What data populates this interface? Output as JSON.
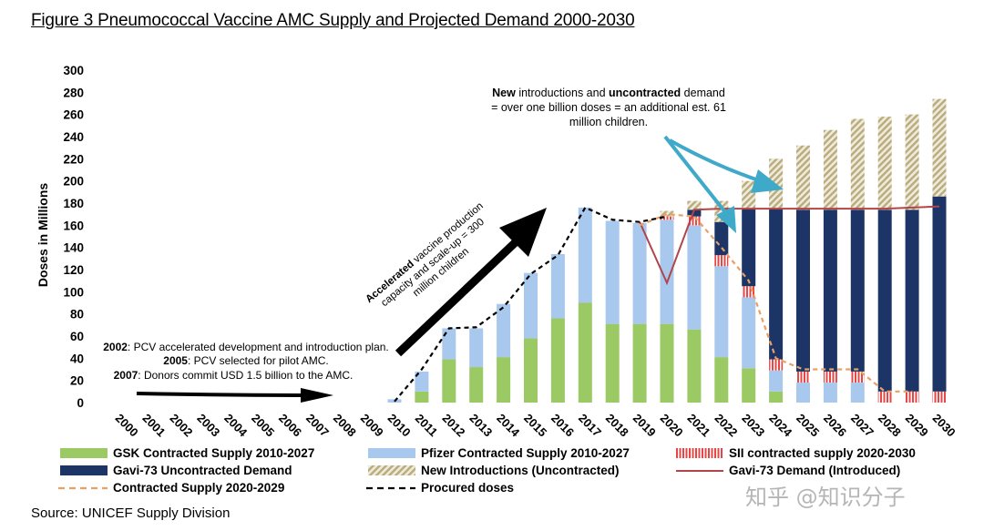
{
  "figure": {
    "title": "Figure 3 Pneumococcal Vaccine AMC Supply and Projected Demand 2000-2030",
    "source": "Source: UNICEF Supply Division",
    "watermark": "知乎 @知识分子"
  },
  "annotations": {
    "new_intro_line1_bold1": "New",
    "new_intro_line1_mid": " introductions and ",
    "new_intro_line1_bold2": "uncontracted",
    "new_intro_line1_end": " demand",
    "new_intro_line2": "= over one billion doses = an additional est. 61",
    "new_intro_line3": "million children.",
    "accel_line1_bold": "Accelerated",
    "accel_line1_rest": " vaccine production",
    "accel_line2": "capacity and scale-up = 300",
    "accel_line3": "million children",
    "hist_2002_bold": "2002",
    "hist_2002_text": ": PCV accelerated development and introduction plan.",
    "hist_2005_bold": "2005",
    "hist_2005_text": ": PCV selected for pilot AMC.",
    "hist_2007_bold": "2007",
    "hist_2007_text": ": Donors commit USD 1.5 billion to the AMC."
  },
  "colors": {
    "gsk": "#9bc964",
    "pfizer": "#a8c8ee",
    "sii": "#e84545",
    "gavi_uncontracted": "#1c3566",
    "new_intro": "#b8ac7c",
    "gavi_demand_line": "#b0454a",
    "contracted_line": "#e8a064",
    "procured_line": "#000000"
  },
  "chart_data": {
    "type": "bar",
    "stacked": true,
    "title": "Figure 3 Pneumococcal Vaccine AMC Supply and Projected Demand 2000-2030",
    "ylabel": "Doses in Millions",
    "xlabel": "",
    "ylim": [
      0,
      300
    ],
    "yticks": [
      0,
      20,
      40,
      60,
      80,
      100,
      120,
      140,
      160,
      180,
      200,
      220,
      240,
      260,
      280,
      300
    ],
    "grid": false,
    "legend_position": "bottom",
    "categories": [
      "2000",
      "2001",
      "2002",
      "2003",
      "2004",
      "2005",
      "2006",
      "2007",
      "2008",
      "2009",
      "2010",
      "2011",
      "2012",
      "2013",
      "2014",
      "2015",
      "2016",
      "2017",
      "2018",
      "2019",
      "2020",
      "2021",
      "2022",
      "2023",
      "2024",
      "2025",
      "2026",
      "2027",
      "2028",
      "2029",
      "2030"
    ],
    "series": [
      {
        "name": "GSK Contracted Supply 2010-2027",
        "kind": "bar",
        "color": "#9bc964",
        "values": [
          0,
          0,
          0,
          0,
          0,
          0,
          0,
          0,
          0,
          0,
          0,
          10,
          39,
          32,
          41,
          58,
          76,
          90,
          71,
          71,
          71,
          66,
          41,
          31,
          10,
          0,
          0,
          0,
          0,
          0,
          0
        ]
      },
      {
        "name": "Pfizer Contracted Supply 2010-2027",
        "kind": "bar",
        "color": "#a8c8ee",
        "values": [
          0,
          0,
          0,
          0,
          0,
          0,
          0,
          0,
          0,
          0,
          3,
          18,
          28,
          35,
          48,
          59,
          58,
          86,
          93,
          91,
          94,
          94,
          82,
          64,
          19,
          18,
          18,
          18,
          0,
          0,
          0
        ]
      },
      {
        "name": "SII contracted supply 2020-2030",
        "kind": "bar",
        "color": "#e84545",
        "values": [
          0,
          0,
          0,
          0,
          0,
          0,
          0,
          0,
          0,
          0,
          0,
          0,
          0,
          0,
          0,
          0,
          0,
          0,
          0,
          0,
          3,
          8,
          10,
          10,
          10,
          10,
          10,
          10,
          10,
          10,
          10
        ]
      },
      {
        "name": "Gavi-73 Uncontracted Demand",
        "kind": "bar",
        "color": "#1c3566",
        "values": [
          0,
          0,
          0,
          0,
          0,
          0,
          0,
          0,
          0,
          0,
          0,
          0,
          0,
          0,
          0,
          0,
          0,
          0,
          0,
          0,
          0,
          6,
          30,
          70,
          136,
          146,
          146,
          146,
          164,
          164,
          176
        ]
      },
      {
        "name": "New Introductions (Uncontracted)",
        "kind": "bar",
        "color": "#b8ac7c",
        "values": [
          0,
          0,
          0,
          0,
          0,
          0,
          0,
          0,
          0,
          0,
          0,
          0,
          0,
          0,
          0,
          0,
          0,
          0,
          0,
          0,
          5,
          8,
          19,
          25,
          45,
          58,
          72,
          82,
          84,
          86,
          88
        ]
      },
      {
        "name": "Gavi-73 Demand (Introduced)",
        "kind": "line",
        "color": "#b0454a",
        "values": [
          null,
          null,
          null,
          null,
          null,
          null,
          null,
          null,
          null,
          null,
          null,
          null,
          null,
          null,
          null,
          null,
          null,
          null,
          null,
          163,
          108,
          174,
          175,
          175,
          175,
          175,
          175,
          175,
          175,
          176,
          177
        ]
      },
      {
        "name": "Contracted Supply 2020-2029",
        "kind": "dashed",
        "color": "#e8a064",
        "values": [
          null,
          null,
          null,
          null,
          null,
          null,
          null,
          null,
          null,
          null,
          null,
          null,
          null,
          null,
          null,
          null,
          null,
          null,
          null,
          160,
          170,
          168,
          140,
          110,
          40,
          30,
          30,
          30,
          10,
          10,
          null
        ]
      },
      {
        "name": "Procured doses",
        "kind": "dashed",
        "color": "#000000",
        "values": [
          null,
          null,
          null,
          null,
          null,
          null,
          null,
          null,
          null,
          null,
          1,
          30,
          67,
          68,
          86,
          116,
          133,
          176,
          165,
          163,
          168,
          null,
          null,
          null,
          null,
          null,
          null,
          null,
          null,
          null,
          null
        ]
      }
    ]
  }
}
